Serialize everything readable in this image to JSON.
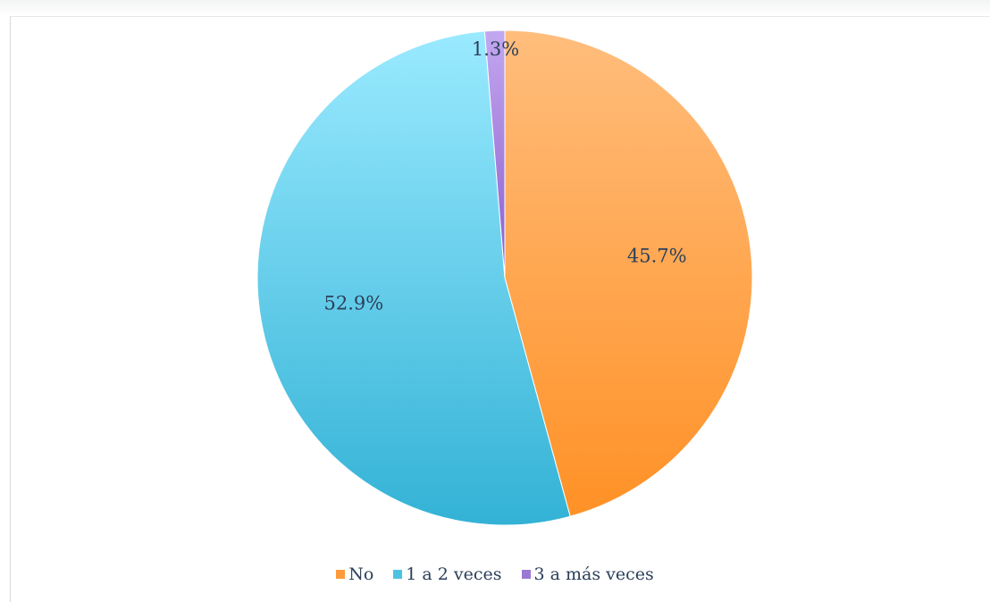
{
  "chart_data": {
    "type": "pie",
    "categories": [
      "No",
      "1 a 2 veces",
      "3 a más veces"
    ],
    "values": [
      45.7,
      52.9,
      1.3
    ],
    "data_labels": [
      "45.7%",
      "52.9%",
      "1.3%"
    ],
    "legend_placement": "bottom",
    "title": "",
    "start_angle": "12 o'clock, clockwise"
  },
  "colors": {
    "no": "#ffa040",
    "uno_a_dos": "#5cc8e6",
    "tres_mas": "#a07ad8",
    "label_text": "#2b3f5a"
  },
  "legend": {
    "items": [
      {
        "label": "No",
        "color": "#ff9a3a"
      },
      {
        "label": "1 a 2 veces",
        "color": "#4cc3e3"
      },
      {
        "label": "3 a más veces",
        "color": "#9b78d4"
      }
    ]
  }
}
